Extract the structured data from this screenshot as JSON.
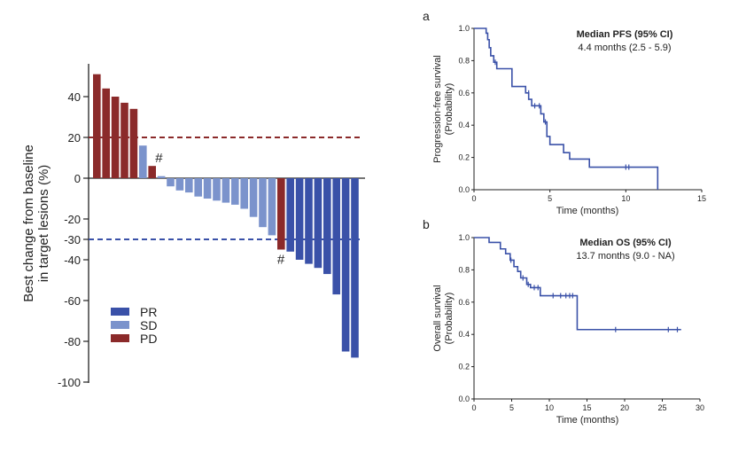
{
  "chart_data": [
    {
      "type": "bar",
      "panel": "waterfall",
      "ylabel_line1": "Best change from baseline",
      "ylabel_line2": "in target lesions (%)",
      "yticks": [
        "40",
        "20",
        "0",
        "-20",
        "-30",
        "-40",
        "-60",
        "-80",
        "-100"
      ],
      "ytick_values": [
        40,
        20,
        0,
        -20,
        -30,
        -40,
        -60,
        -80,
        -100
      ],
      "ylim": [
        -100,
        55
      ],
      "reference_lines": [
        {
          "value": 20,
          "color": "#8b2a2a",
          "style": "dashed"
        },
        {
          "value": -30,
          "color": "#3a51a8",
          "style": "dashed"
        }
      ],
      "categories_colors": {
        "PR": "#3a51a8",
        "SD": "#7b93cc",
        "PD": "#8b2a2a"
      },
      "legend": [
        {
          "label": "PR",
          "key": "PR"
        },
        {
          "label": "SD",
          "key": "SD"
        },
        {
          "label": "PD",
          "key": "PD"
        }
      ],
      "annotation_symbol": "#",
      "bars": [
        {
          "value": 51,
          "category": "PD"
        },
        {
          "value": 44,
          "category": "PD"
        },
        {
          "value": 40,
          "category": "PD"
        },
        {
          "value": 37,
          "category": "PD"
        },
        {
          "value": 34,
          "category": "PD"
        },
        {
          "value": 16,
          "category": "SD"
        },
        {
          "value": 6,
          "category": "PD",
          "annotated": true
        },
        {
          "value": 1,
          "category": "SD"
        },
        {
          "value": -4,
          "category": "SD"
        },
        {
          "value": -6,
          "category": "SD"
        },
        {
          "value": -7,
          "category": "SD"
        },
        {
          "value": -9,
          "category": "SD"
        },
        {
          "value": -10,
          "category": "SD"
        },
        {
          "value": -11,
          "category": "SD"
        },
        {
          "value": -12,
          "category": "SD"
        },
        {
          "value": -13,
          "category": "SD"
        },
        {
          "value": -15,
          "category": "SD"
        },
        {
          "value": -19,
          "category": "SD"
        },
        {
          "value": -24,
          "category": "SD"
        },
        {
          "value": -28,
          "category": "SD"
        },
        {
          "value": -35,
          "category": "PD",
          "annotated": true
        },
        {
          "value": -36,
          "category": "PR"
        },
        {
          "value": -40,
          "category": "PR"
        },
        {
          "value": -42,
          "category": "PR"
        },
        {
          "value": -44,
          "category": "PR"
        },
        {
          "value": -47,
          "category": "PR"
        },
        {
          "value": -57,
          "category": "PR"
        },
        {
          "value": -85,
          "category": "PR"
        },
        {
          "value": -88,
          "category": "PR"
        }
      ]
    },
    {
      "type": "line",
      "panel_letter": "a",
      "ylabel_line1": "Progression-free survival",
      "ylabel_line2": "(Probability)",
      "xlabel": "Time (months)",
      "xticks": [
        "0",
        "5",
        "10",
        "15"
      ],
      "xtick_values": [
        0,
        5,
        10,
        15
      ],
      "xlim": [
        0,
        15
      ],
      "yticks": [
        "0.0",
        "0.2",
        "0.4",
        "0.6",
        "0.8",
        "1.0"
      ],
      "ytick_values": [
        0,
        0.2,
        0.4,
        0.6,
        0.8,
        1.0
      ],
      "ylim": [
        0,
        1.0
      ],
      "annotation_title": "Median PFS (95% CI)",
      "annotation_text": "4.4 months (2.5 - 5.9)",
      "line_color": "#3a51a8",
      "steps": [
        [
          0,
          1.0
        ],
        [
          0.8,
          0.97
        ],
        [
          0.9,
          0.93
        ],
        [
          1.0,
          0.88
        ],
        [
          1.1,
          0.83
        ],
        [
          1.3,
          0.79
        ],
        [
          1.5,
          0.75
        ],
        [
          2.5,
          0.64
        ],
        [
          3.4,
          0.6
        ],
        [
          3.6,
          0.56
        ],
        [
          3.8,
          0.52
        ],
        [
          4.4,
          0.47
        ],
        [
          4.6,
          0.42
        ],
        [
          4.8,
          0.33
        ],
        [
          5.0,
          0.28
        ],
        [
          5.9,
          0.23
        ],
        [
          6.3,
          0.19
        ],
        [
          7.6,
          0.14
        ],
        [
          12.1,
          0.0
        ]
      ],
      "end_x": 12.1,
      "censor_marks": [
        [
          1.4,
          0.79
        ],
        [
          3.6,
          0.6
        ],
        [
          4.0,
          0.52
        ],
        [
          4.3,
          0.52
        ],
        [
          4.7,
          0.42
        ],
        [
          10.0,
          0.14
        ],
        [
          10.2,
          0.14
        ]
      ]
    },
    {
      "type": "line",
      "panel_letter": "b",
      "ylabel_line1": "Overall survival",
      "ylabel_line2": "(Probability)",
      "xlabel": "Time (months)",
      "xticks": [
        "0",
        "5",
        "10",
        "15",
        "20",
        "25",
        "30"
      ],
      "xtick_values": [
        0,
        5,
        10,
        15,
        20,
        25,
        30
      ],
      "xlim": [
        0,
        30
      ],
      "yticks": [
        "0.0",
        "0.2",
        "0.4",
        "0.6",
        "0.8",
        "1.0"
      ],
      "ytick_values": [
        0,
        0.2,
        0.4,
        0.6,
        0.8,
        1.0
      ],
      "ylim": [
        0,
        1.0
      ],
      "annotation_title": "Median OS (95% CI)",
      "annotation_text": "13.7 months (9.0 - NA)",
      "line_color": "#3a51a8",
      "steps": [
        [
          0,
          1.0
        ],
        [
          2.0,
          0.97
        ],
        [
          3.5,
          0.93
        ],
        [
          4.2,
          0.9
        ],
        [
          4.8,
          0.86
        ],
        [
          5.3,
          0.82
        ],
        [
          5.8,
          0.79
        ],
        [
          6.2,
          0.75
        ],
        [
          7.0,
          0.71
        ],
        [
          7.5,
          0.69
        ],
        [
          8.8,
          0.64
        ],
        [
          13.3,
          0.64
        ],
        [
          13.7,
          0.43
        ]
      ],
      "end_x": 27.5,
      "censor_marks": [
        [
          4.9,
          0.86
        ],
        [
          6.5,
          0.75
        ],
        [
          7.2,
          0.71
        ],
        [
          8.0,
          0.69
        ],
        [
          8.5,
          0.69
        ],
        [
          10.5,
          0.64
        ],
        [
          11.5,
          0.64
        ],
        [
          12.2,
          0.64
        ],
        [
          12.7,
          0.64
        ],
        [
          13.1,
          0.64
        ],
        [
          18.8,
          0.43
        ],
        [
          25.8,
          0.43
        ],
        [
          27.0,
          0.43
        ]
      ]
    }
  ]
}
